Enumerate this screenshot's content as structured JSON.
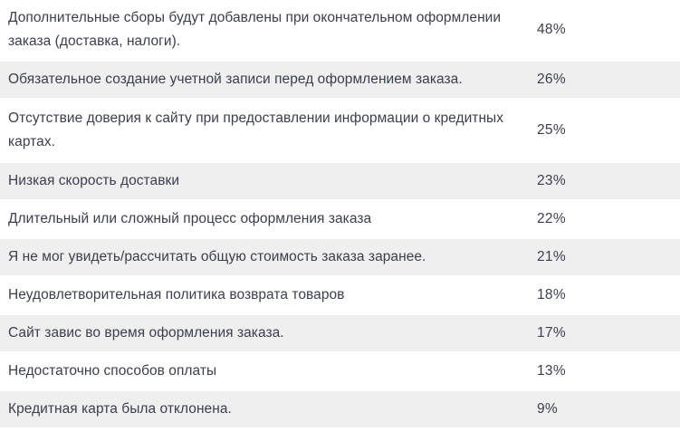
{
  "table": {
    "rows": [
      {
        "reason": "Дополнительные сборы будут добавлены при окончательном оформлении заказа (доставка, налоги).",
        "percent": "48%"
      },
      {
        "reason": "Обязательное создание учетной записи перед оформлением заказа.",
        "percent": "26%"
      },
      {
        "reason": "Отсутствие доверия к сайту при предоставлении информации о кредитных картах.",
        "percent": "25%"
      },
      {
        "reason": "Низкая скорость доставки",
        "percent": "23%"
      },
      {
        "reason": "Длительный или сложный процесс оформления заказа",
        "percent": "22%"
      },
      {
        "reason": "Я не мог увидеть/рассчитать общую стоимость заказа заранее.",
        "percent": "21%"
      },
      {
        "reason": "Неудовлетворительная политика возврата товаров",
        "percent": "18%"
      },
      {
        "reason": "Сайт завис во время оформления заказа.",
        "percent": "17%"
      },
      {
        "reason": "Недостаточно способов оплаты",
        "percent": "13%"
      },
      {
        "reason": "Кредитная карта была отклонена.",
        "percent": "9%"
      }
    ]
  },
  "colors": {
    "text": "#3a3f4b",
    "row_alt_bg": "#efefef",
    "row_bg": "#ffffff"
  }
}
